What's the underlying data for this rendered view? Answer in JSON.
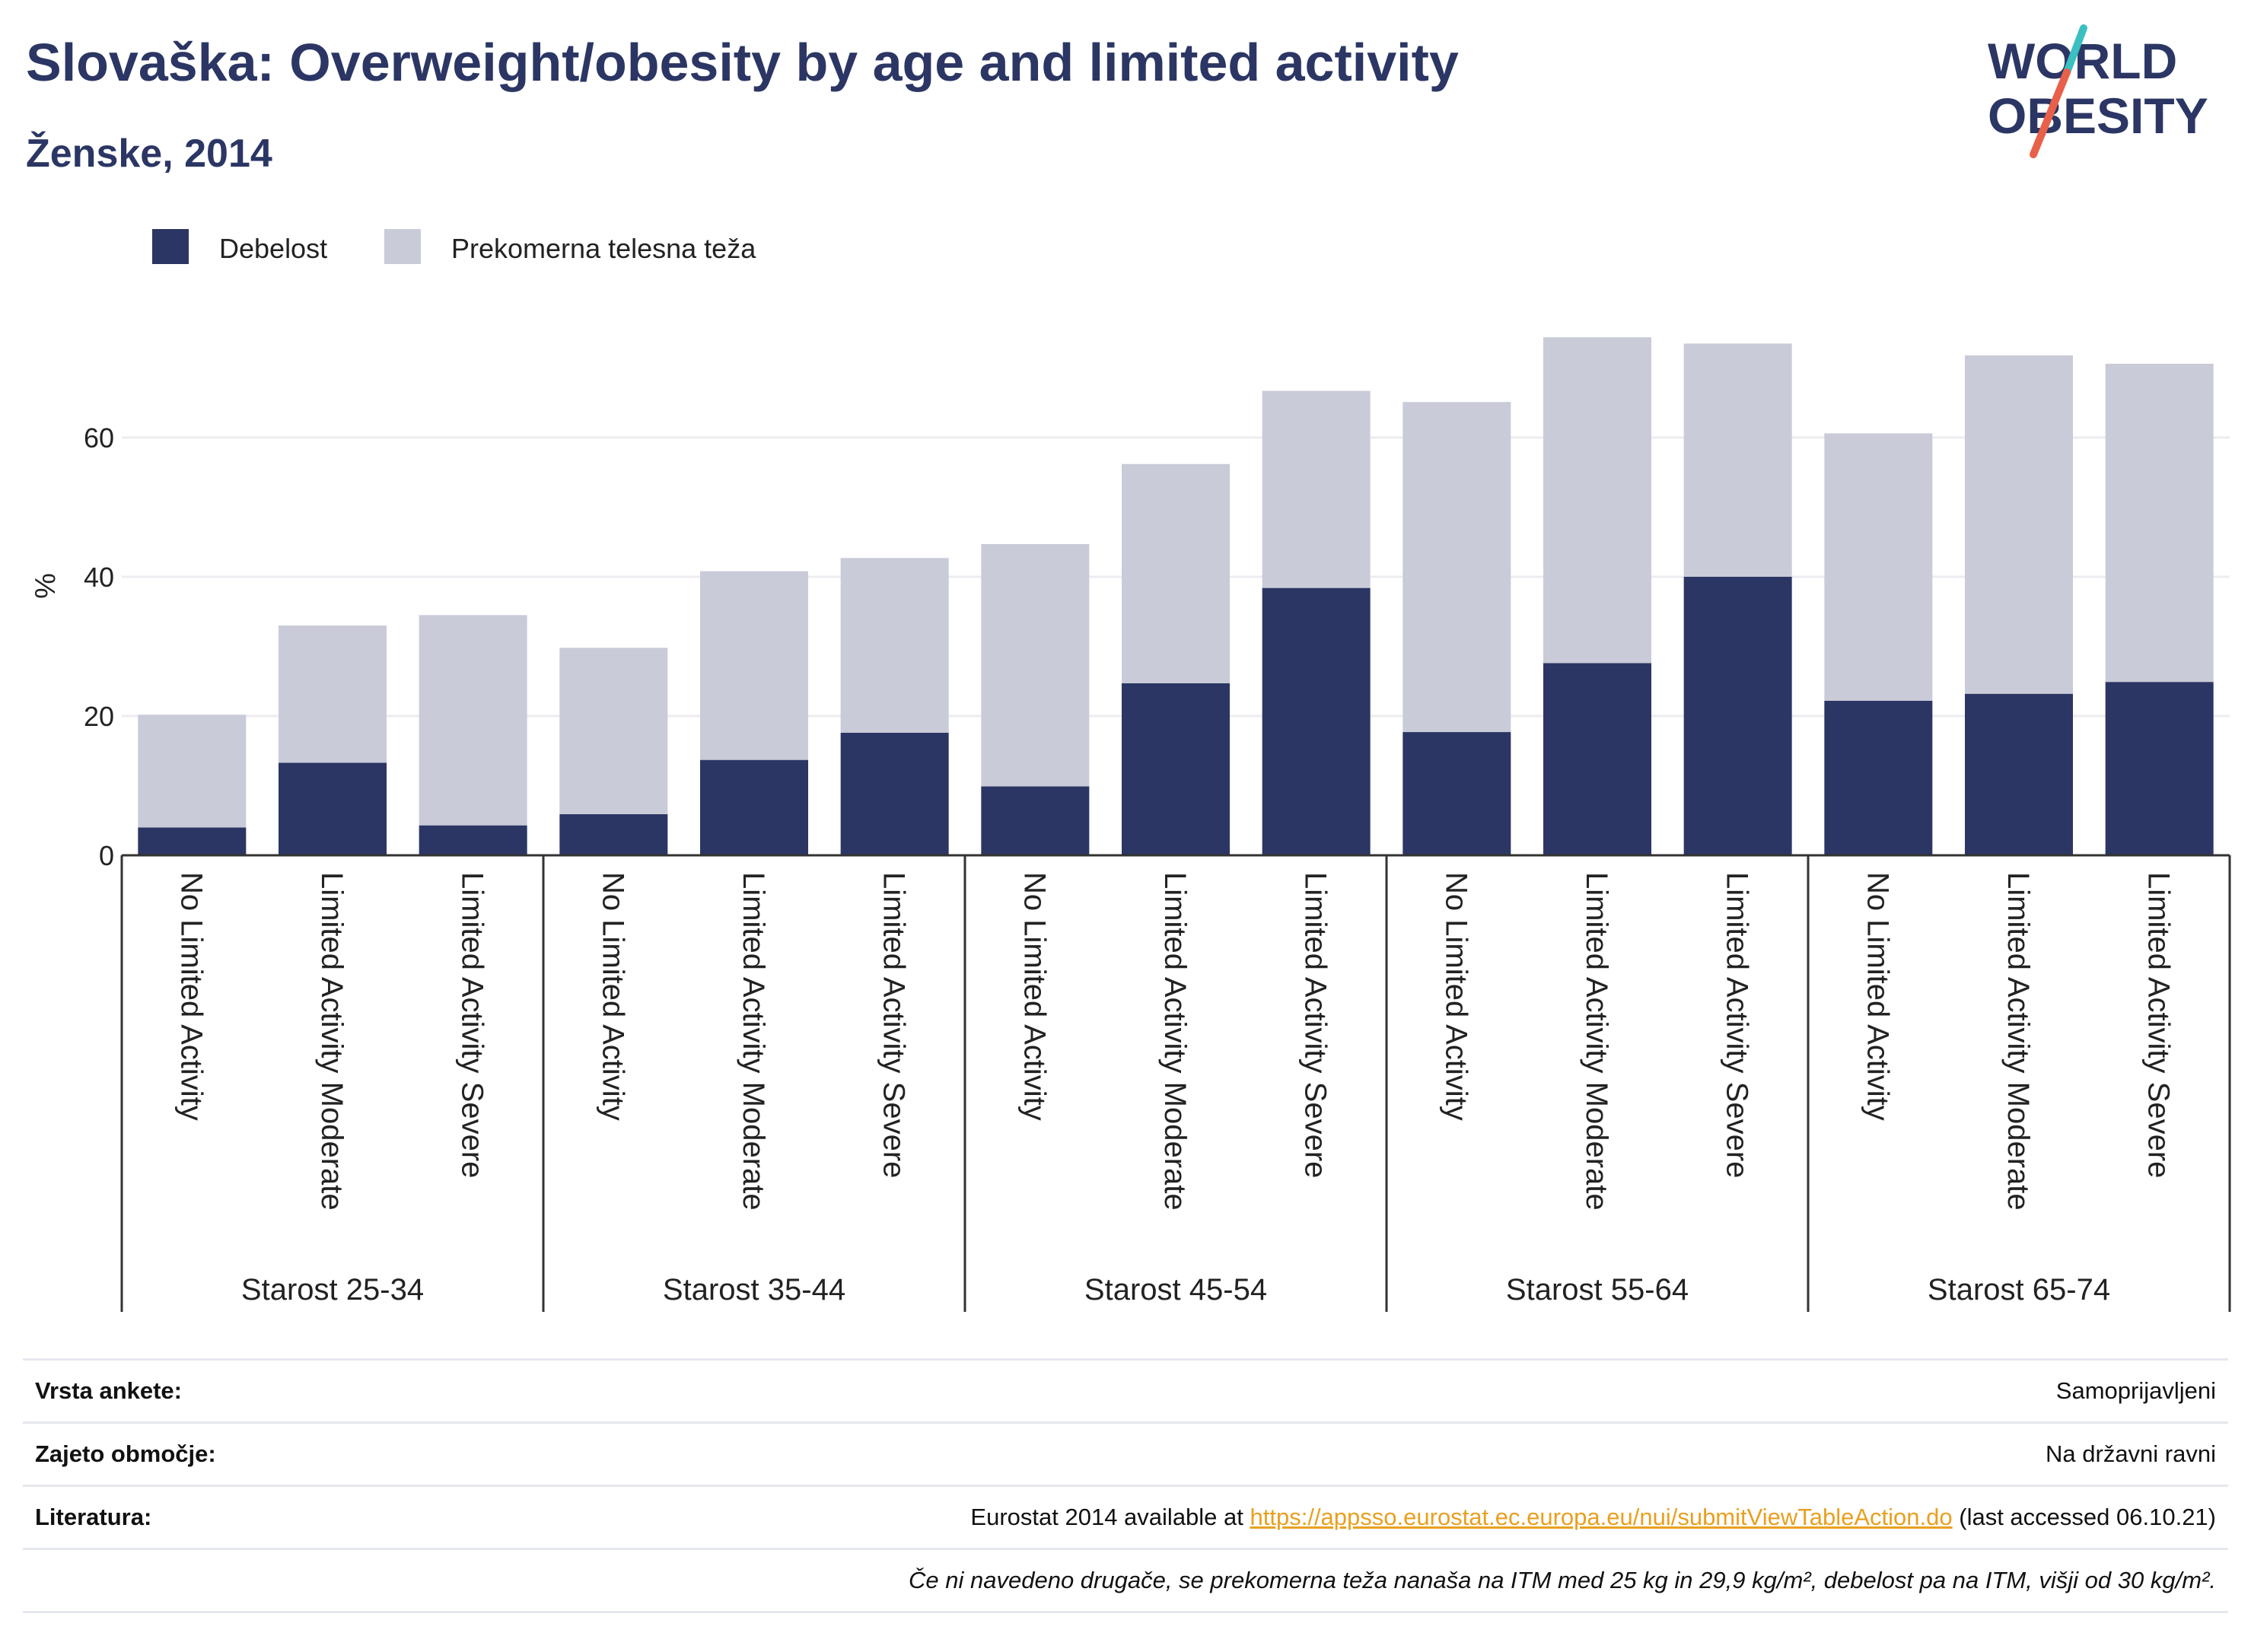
{
  "header": {
    "title": "Slovaška: Overweight/obesity by age and limited activity",
    "subtitle": "Ženske, 2014"
  },
  "logo": {
    "line1": "WORLD",
    "line2": "OBESITY"
  },
  "colors": {
    "obesity": "#2b3664",
    "overweight": "#c9cbd8",
    "title": "#2b3664",
    "link": "#e8a020",
    "logo_red": "#e8604a",
    "logo_teal": "#3bbfc0"
  },
  "chart_data": {
    "type": "bar",
    "stacked": true,
    "ylabel": "%",
    "ylim": [
      0,
      80
    ],
    "yticks": [
      0,
      20,
      40,
      60
    ],
    "grid": true,
    "legend_position": "top-left",
    "groups": [
      {
        "label": "Starost 25-34",
        "categories": [
          "No Limited Activity",
          "Limited Activity Moderate",
          "Limited Activity Severe"
        ]
      },
      {
        "label": "Starost 35-44",
        "categories": [
          "No Limited Activity",
          "Limited Activity Moderate",
          "Limited Activity Severe"
        ]
      },
      {
        "label": "Starost 45-54",
        "categories": [
          "No Limited Activity",
          "Limited Activity Moderate",
          "Limited Activity Severe"
        ]
      },
      {
        "label": "Starost 55-64",
        "categories": [
          "No Limited Activity",
          "Limited Activity Moderate",
          "Limited Activity Severe"
        ]
      },
      {
        "label": "Starost 65-74",
        "categories": [
          "No Limited Activity",
          "Limited Activity Moderate",
          "Limited Activity Severe"
        ]
      }
    ],
    "series": [
      {
        "name": "Debelost",
        "color": "#2b3664",
        "values": [
          4.0,
          13.3,
          4.3,
          5.9,
          13.7,
          17.6,
          9.9,
          24.7,
          38.4,
          17.7,
          27.6,
          40.0,
          22.2,
          23.2,
          24.9
        ]
      },
      {
        "name": "Prekomerna telesna teža",
        "color": "#c9cbd8",
        "values": [
          16.2,
          19.7,
          30.2,
          23.9,
          27.1,
          25.1,
          34.8,
          31.5,
          28.3,
          47.4,
          46.8,
          33.5,
          38.4,
          48.6,
          45.7
        ]
      }
    ]
  },
  "footer": {
    "survey_label": "Vrsta ankete:",
    "survey_value": "Samoprijavljeni",
    "coverage_label": "Zajeto območje:",
    "coverage_value": "Na državni ravni",
    "reference_label": "Literatura:",
    "reference_prefix": "Eurostat 2014 available at ",
    "reference_link": "https://appsso.eurostat.ec.europa.eu/nui/submitViewTableAction.do",
    "reference_suffix": " (last accessed 06.10.21)",
    "note": "Če ni navedeno drugače, se prekomerna teža nanaša na ITM med 25 kg in 29,9 kg/m², debelost pa na ITM, višji od 30 kg/m²."
  }
}
